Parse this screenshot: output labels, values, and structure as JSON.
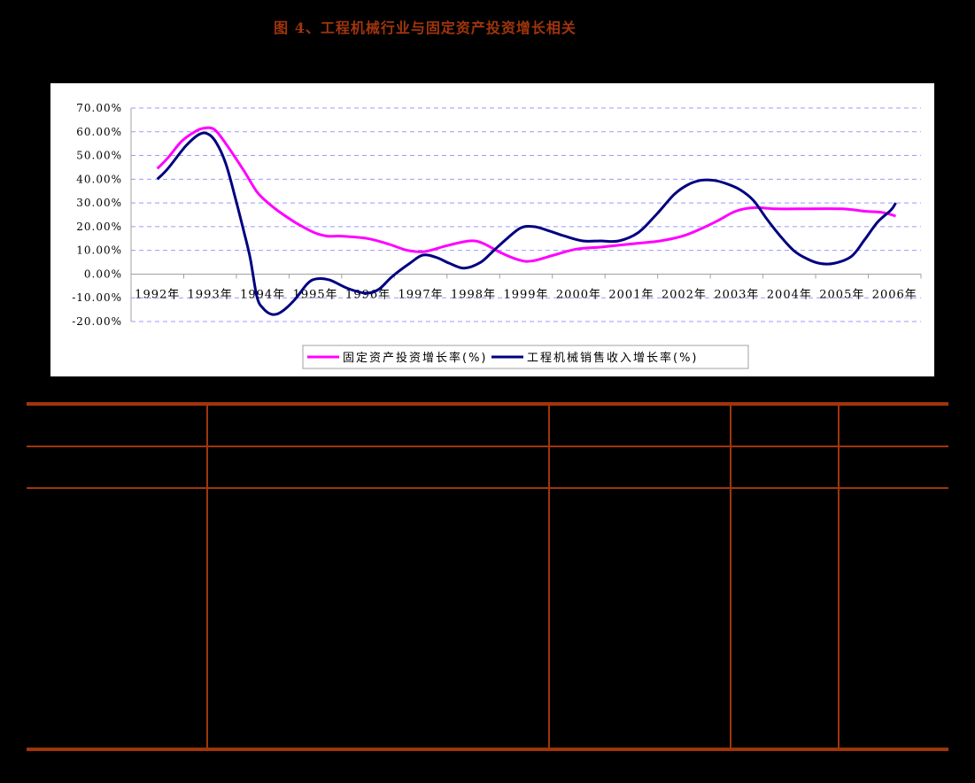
{
  "figure": {
    "title": "图 4、工程机械行业与固定资产投资增长相关"
  },
  "colors": {
    "title": "#a0350c",
    "table_rule": "#a0350c",
    "series_fixed_asset": "#ff00ff",
    "series_machinery": "#000080",
    "gridline": "#9999ff",
    "axis": "#a0a0a0"
  },
  "chart_data": {
    "type": "line",
    "title": "图 4、工程机械行业与固定资产投资增长相关",
    "xlabel": "",
    "ylabel": "",
    "categories": [
      "1992年",
      "1993年",
      "1994年",
      "1995年",
      "1996年",
      "1997年",
      "1998年",
      "1999年",
      "2000年",
      "2001年",
      "2002年",
      "2003年",
      "2004年",
      "2005年",
      "2006年"
    ],
    "yticks": [
      "70.00%",
      "60.00%",
      "50.00%",
      "40.00%",
      "30.00%",
      "20.00%",
      "10.00%",
      "0.00%",
      "-10.00%",
      "-20.00%"
    ],
    "ylim": [
      -20,
      70
    ],
    "grid": true,
    "legend_position": "bottom",
    "series": [
      {
        "name": "固定资产投资增长率(%)",
        "color": "#ff00ff",
        "x": [
          1992.5,
          1992.7,
          1992.96,
          1993.21,
          1993.38,
          1993.58,
          1993.8,
          1994.13,
          1994.38,
          1994.55,
          1994.8,
          1995.14,
          1995.48,
          1995.73,
          1995.98,
          1996.49,
          1996.91,
          1997.25,
          1997.58,
          1998.0,
          1998.43,
          1998.68,
          1999.02,
          1999.36,
          1999.61,
          2000.03,
          2000.45,
          2000.96,
          2001.63,
          2002.05,
          2002.47,
          2002.81,
          2003.14,
          2003.48,
          2003.82,
          2004.24,
          2004.66,
          2005.5,
          2005.93,
          2006.26,
          2006.52
        ],
        "values": [
          44.5,
          49,
          56,
          60,
          61.5,
          61,
          55,
          44,
          35,
          31,
          26.5,
          21.5,
          17.5,
          16,
          16,
          15,
          12.5,
          10,
          9.5,
          12,
          14,
          13,
          9,
          6,
          5.5,
          8,
          10.5,
          11.5,
          13,
          14,
          16,
          19,
          22.5,
          26.5,
          28,
          27.5,
          27.5,
          27.5,
          26.5,
          26,
          24.5
        ]
      },
      {
        "name": "工程机械销售收入增长率(%)",
        "color": "#000080",
        "x": [
          1992.5,
          1992.7,
          1993.04,
          1993.3,
          1993.47,
          1993.63,
          1993.8,
          1993.97,
          1994.13,
          1994.26,
          1994.39,
          1994.51,
          1994.68,
          1994.85,
          1995.1,
          1995.35,
          1995.52,
          1995.77,
          1996.11,
          1996.45,
          1996.7,
          1996.96,
          1997.29,
          1997.54,
          1997.8,
          1998.05,
          1998.33,
          1998.64,
          1998.89,
          1999.14,
          1999.4,
          1999.65,
          1999.9,
          2000.24,
          2000.58,
          2000.92,
          2001.26,
          2001.63,
          2001.97,
          2002.31,
          2002.56,
          2002.81,
          2003.07,
          2003.32,
          2003.57,
          2003.82,
          2004.08,
          2004.33,
          2004.58,
          2004.83,
          2005.08,
          2005.34,
          2005.68,
          2005.93,
          2006.18,
          2006.43,
          2006.52
        ],
        "values": [
          40,
          44.5,
          54,
          59,
          59,
          55,
          46.5,
          33,
          19,
          7,
          -9.5,
          -14.5,
          -17,
          -16,
          -11,
          -4,
          -2,
          -2.5,
          -6,
          -8,
          -6.5,
          -1,
          4.5,
          8,
          7,
          4.5,
          2.5,
          5,
          10,
          15,
          19.5,
          20,
          18.5,
          16,
          14,
          14,
          14,
          17.5,
          25,
          33.5,
          37.5,
          39.5,
          39.5,
          38,
          35.5,
          31,
          23,
          16,
          10,
          6.5,
          4.5,
          4.5,
          7.5,
          14.5,
          22,
          27,
          30
        ]
      }
    ]
  },
  "legend": {
    "items": [
      {
        "label": "固定资产投资增长率(%)"
      },
      {
        "label": "工程机械销售收入增长率(%)"
      }
    ]
  },
  "table": {
    "columns": 5,
    "rows": 3,
    "headers": [
      "",
      "",
      "",
      "",
      ""
    ],
    "cells": []
  }
}
